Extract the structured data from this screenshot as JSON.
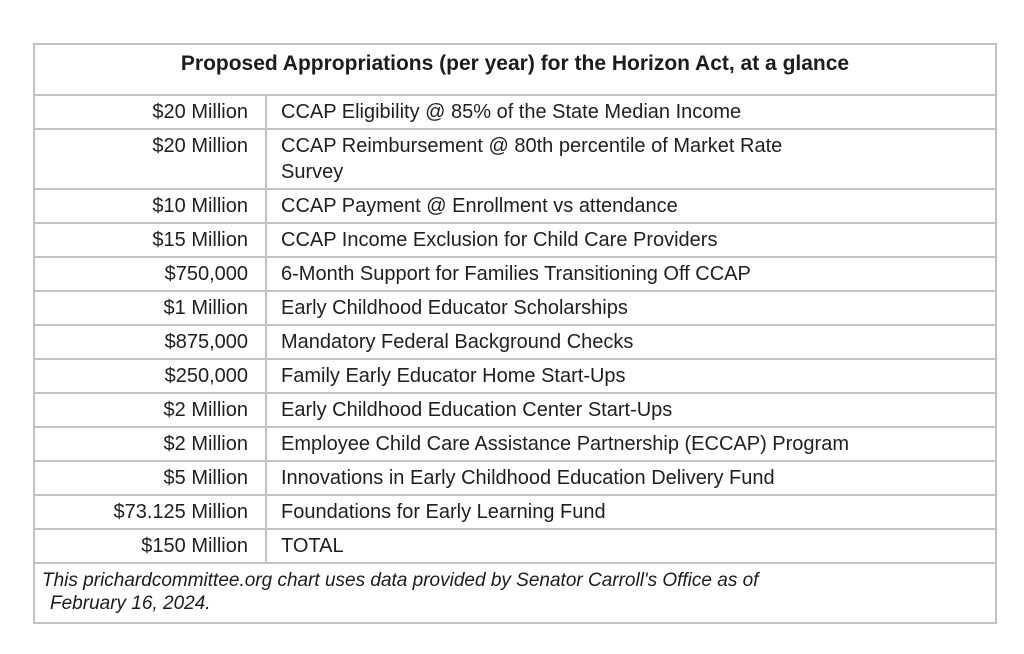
{
  "chart_data": {
    "type": "table",
    "title": "Proposed Appropriations (per year) for the Horizon Act, at a glance",
    "columns": [
      "amount",
      "item"
    ],
    "rows": [
      {
        "amount": "$20 Million",
        "item": "CCAP Eligibility @ 85% of the State Median Income"
      },
      {
        "amount": "$20 Million",
        "item": "CCAP Reimbursement @ 80th percentile of Market Rate Survey"
      },
      {
        "amount": "$10 Million",
        "item": "CCAP Payment @ Enrollment vs attendance"
      },
      {
        "amount": "$15 Million",
        "item": "CCAP Income Exclusion for Child Care Providers"
      },
      {
        "amount": "$750,000",
        "item": "6-Month Support for Families Transitioning Off CCAP"
      },
      {
        "amount": "$1 Million",
        "item": "Early Childhood Educator Scholarships"
      },
      {
        "amount": "$875,000",
        "item": "Mandatory Federal Background Checks"
      },
      {
        "amount": "$250,000",
        "item": "Family Early Educator Home Start-Ups"
      },
      {
        "amount": "$2 Million",
        "item": "Early Childhood Education Center Start-Ups"
      },
      {
        "amount": "$2 Million",
        "item": "Employee Child Care Assistance Partnership (ECCAP) Program"
      },
      {
        "amount": "$5 Million",
        "item": "Innovations in Early Childhood Education Delivery Fund"
      },
      {
        "amount": "$73.125 Million",
        "item": "Foundations for Early Learning Fund"
      },
      {
        "amount": "$150 Million",
        "item": "TOTAL"
      }
    ],
    "footnote_line1": "This prichardcommittee.org chart uses data provided by Senator Carroll's Office as of",
    "footnote_line2": "February 16, 2024.",
    "legend_position": "none",
    "grid": true
  },
  "colors": {
    "border": "#c3c3c3",
    "text": "#1f1f1f",
    "background": "#ffffff"
  }
}
